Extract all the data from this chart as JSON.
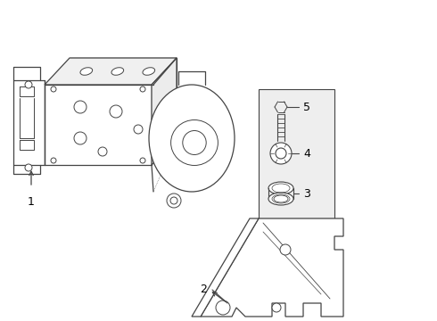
{
  "bg_color": "#ffffff",
  "line_color": "#444444",
  "label_color": "#000000",
  "figsize": [
    4.9,
    3.6
  ],
  "dpi": 100,
  "xlim": [
    0,
    490
  ],
  "ylim": [
    0,
    360
  ]
}
